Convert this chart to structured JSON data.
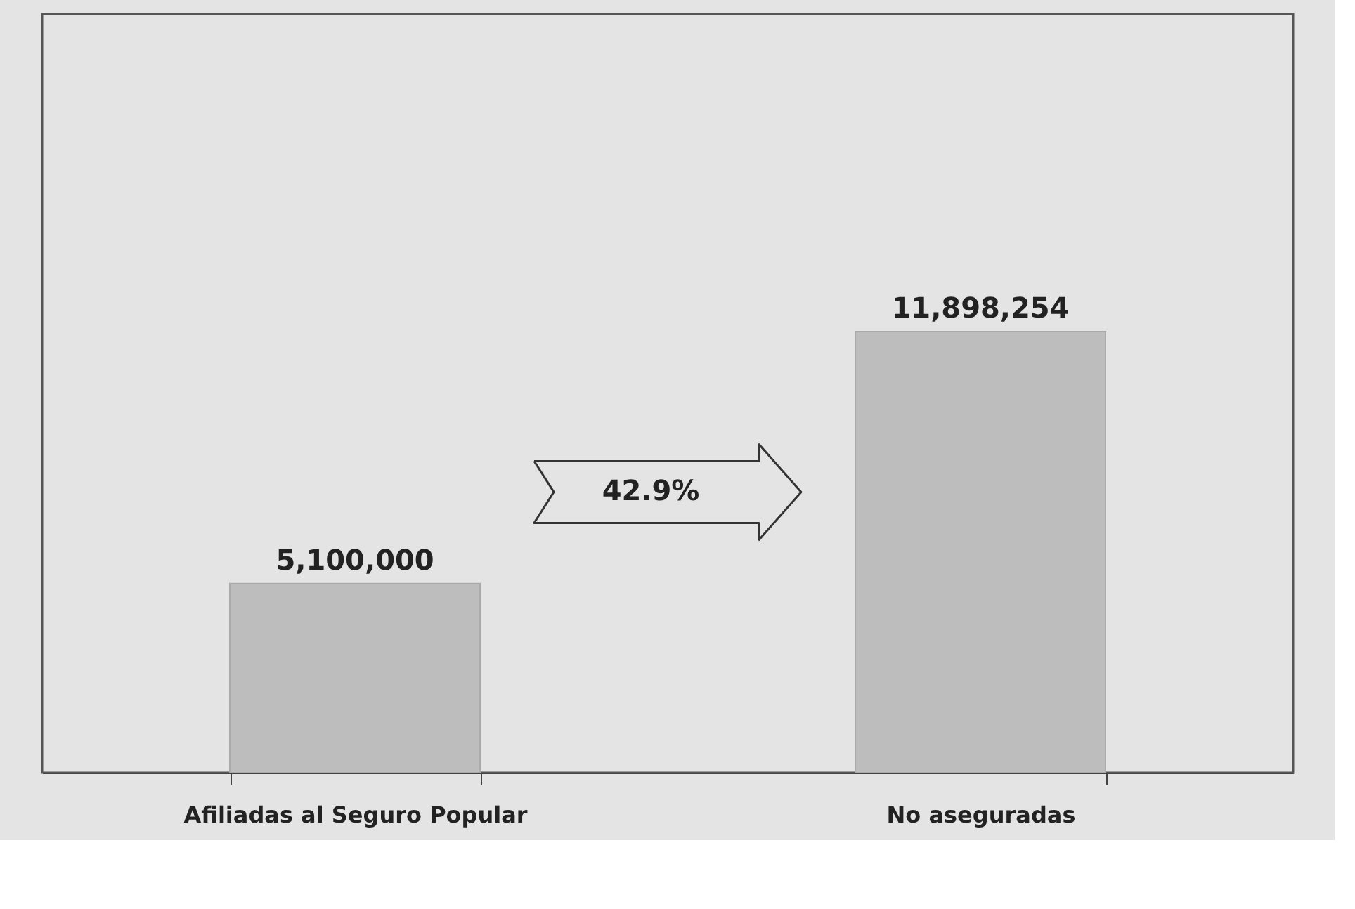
{
  "chart_data": {
    "type": "bar",
    "categories": [
      "Afiliadas al Seguro Popular",
      "No aseguradas"
    ],
    "values": [
      5100000,
      11898254
    ],
    "value_labels": [
      "5,100,000",
      "11,898,254"
    ],
    "color": "#bdbdbd",
    "tick_labels": "x",
    "grid": false,
    "annotations": [
      "42.9%"
    ]
  }
}
